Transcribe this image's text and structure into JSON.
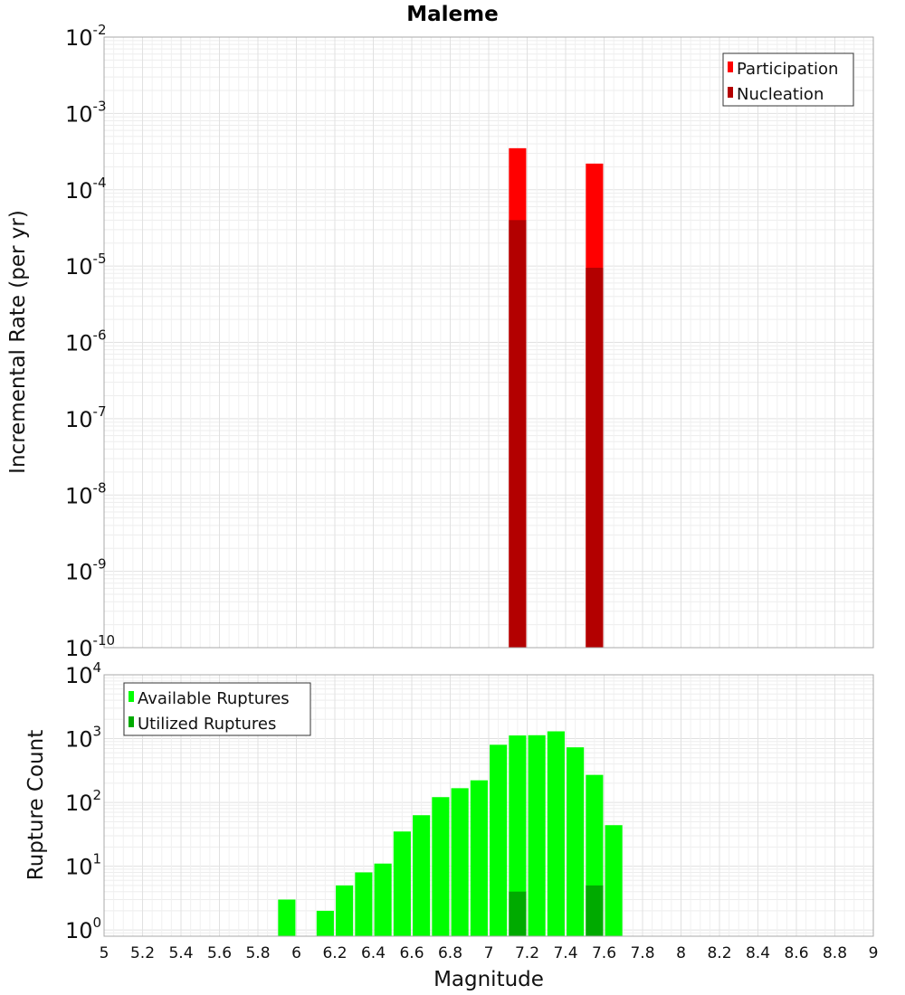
{
  "chart_data": [
    {
      "type": "bar",
      "title": "Maleme",
      "xlabel": "",
      "ylabel": "Incremental Rate (per yr)",
      "yscale": "log",
      "ylim": [
        1e-10,
        0.01
      ],
      "xlim": [
        5,
        9
      ],
      "grid": true,
      "legend_position": "top-right",
      "y_tick_labels": [
        {
          "base": "10",
          "exp": "-10"
        },
        {
          "base": "10",
          "exp": "-9"
        },
        {
          "base": "10",
          "exp": "-8"
        },
        {
          "base": "10",
          "exp": "-7"
        },
        {
          "base": "10",
          "exp": "-6"
        },
        {
          "base": "10",
          "exp": "-5"
        },
        {
          "base": "10",
          "exp": "-4"
        },
        {
          "base": "10",
          "exp": "-3"
        },
        {
          "base": "10",
          "exp": "-2"
        }
      ],
      "series": [
        {
          "name": "Participation",
          "color": "#ff0000",
          "points": [
            {
              "x": 7.15,
              "y": 0.00035
            },
            {
              "x": 7.55,
              "y": 0.00022
            }
          ]
        },
        {
          "name": "Nucleation",
          "color": "#b30000",
          "points": [
            {
              "x": 7.15,
              "y": 4e-05
            },
            {
              "x": 7.55,
              "y": 9.5e-06
            }
          ]
        }
      ]
    },
    {
      "type": "bar",
      "xlabel": "Magnitude",
      "ylabel": "Rupture Count",
      "yscale": "log",
      "ylim": [
        0.8,
        10000
      ],
      "xlim": [
        5,
        9
      ],
      "grid": true,
      "legend_position": "top-left",
      "y_tick_labels": [
        {
          "base": "10",
          "exp": "0"
        },
        {
          "base": "10",
          "exp": "1"
        },
        {
          "base": "10",
          "exp": "2"
        },
        {
          "base": "10",
          "exp": "3"
        },
        {
          "base": "10",
          "exp": "4"
        }
      ],
      "x_tick_labels": [
        "5",
        "5.2",
        "5.4",
        "5.6",
        "5.8",
        "6",
        "6.2",
        "6.4",
        "6.6",
        "6.8",
        "7",
        "7.2",
        "7.4",
        "7.6",
        "7.8",
        "8",
        "8.2",
        "8.4",
        "8.6",
        "8.8",
        "9"
      ],
      "series": [
        {
          "name": "Available Ruptures",
          "color": "#00ff00",
          "points": [
            {
              "x": 5.95,
              "y": 3
            },
            {
              "x": 6.15,
              "y": 2
            },
            {
              "x": 6.25,
              "y": 5
            },
            {
              "x": 6.35,
              "y": 8
            },
            {
              "x": 6.45,
              "y": 11
            },
            {
              "x": 6.55,
              "y": 35
            },
            {
              "x": 6.65,
              "y": 63
            },
            {
              "x": 6.75,
              "y": 121
            },
            {
              "x": 6.85,
              "y": 167
            },
            {
              "x": 6.95,
              "y": 222
            },
            {
              "x": 7.05,
              "y": 800
            },
            {
              "x": 7.15,
              "y": 1120
            },
            {
              "x": 7.25,
              "y": 1130
            },
            {
              "x": 7.35,
              "y": 1300
            },
            {
              "x": 7.45,
              "y": 730
            },
            {
              "x": 7.55,
              "y": 270
            },
            {
              "x": 7.65,
              "y": 44
            }
          ]
        },
        {
          "name": "Utilized Ruptures",
          "color": "#00aa00",
          "points": [
            {
              "x": 7.15,
              "y": 4
            },
            {
              "x": 7.55,
              "y": 5
            }
          ]
        }
      ]
    }
  ]
}
